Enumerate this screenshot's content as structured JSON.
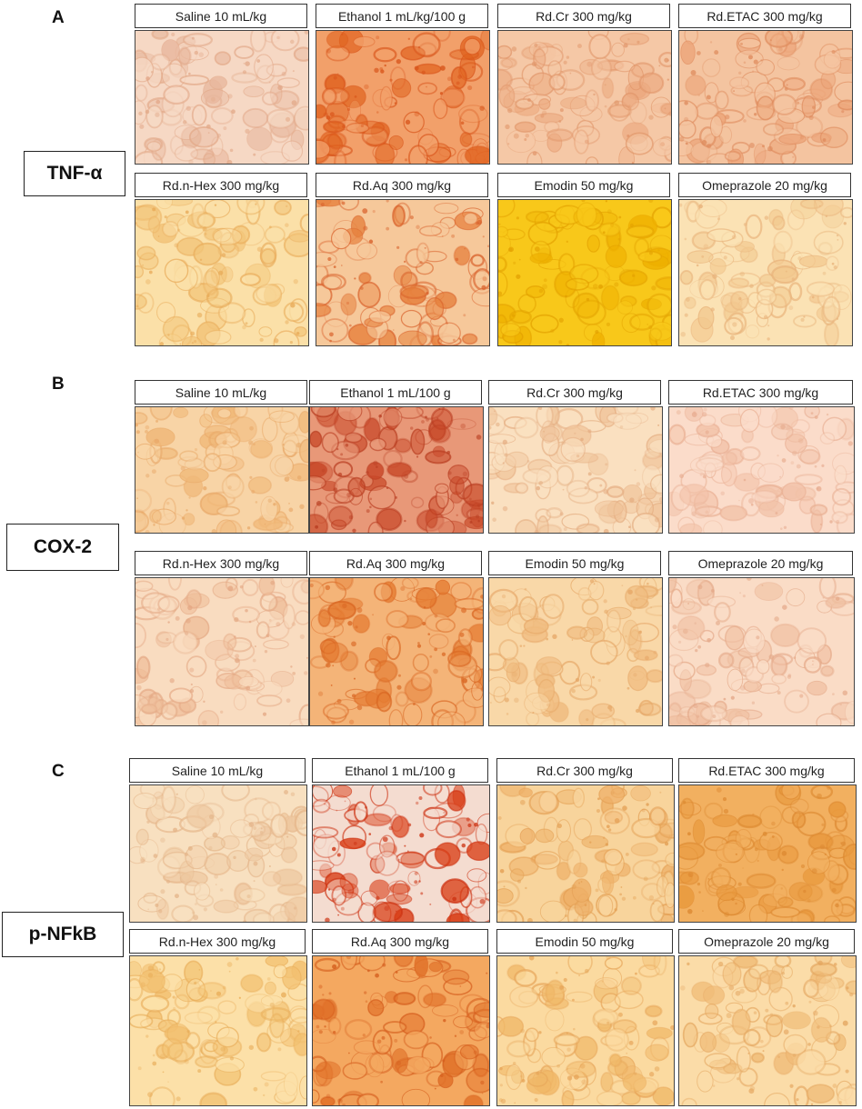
{
  "panels": [
    {
      "letter": "A",
      "marker": "TNF-α",
      "rows": [
        [
          {
            "label": "Saline 10 mL/kg",
            "base": "#f6d8c4",
            "spot": "#e8b89e",
            "stroke": "#e2a888"
          },
          {
            "label": "Ethanol 1 mL/kg/100 g",
            "base": "#f2a06a",
            "spot": "#e0621e",
            "stroke": "#d8541a"
          },
          {
            "label": "Rd.Cr 300 mg/kg",
            "base": "#f5c8a6",
            "spot": "#ecaa80",
            "stroke": "#e09468"
          },
          {
            "label": "Rd.ETAC 300 mg/kg",
            "base": "#f4c4a0",
            "spot": "#eca478",
            "stroke": "#de8a5c"
          }
        ],
        [
          {
            "label": "Rd.n-Hex 300 mg/kg",
            "base": "#fbe0a8",
            "spot": "#f2c478",
            "stroke": "#e8aa58"
          },
          {
            "label": "Rd.Aq 300 mg/kg",
            "base": "#f6c89a",
            "spot": "#e6803c",
            "stroke": "#d8602a"
          },
          {
            "label": "Emodin 50 mg/kg",
            "base": "#f8c81a",
            "spot": "#eeb000",
            "stroke": "#e2a000"
          },
          {
            "label": "Omeprazole 20 mg/kg",
            "base": "#fbe2b4",
            "spot": "#f2c88e",
            "stroke": "#e8b27a"
          }
        ]
      ]
    },
    {
      "letter": "B",
      "marker": "COX-2",
      "rows": [
        [
          {
            "label": "Saline 10 mL/kg",
            "base": "#f8d4a6",
            "spot": "#f0b878",
            "stroke": "#e8a868"
          },
          {
            "label": "Ethanol 1 mL/100 g",
            "base": "#e89878",
            "spot": "#c84828",
            "stroke": "#b83c20"
          },
          {
            "label": "Rd.Cr 300 mg/kg",
            "base": "#fae0c0",
            "spot": "#f0c49a",
            "stroke": "#e4ac80"
          },
          {
            "label": "Rd.ETAC 300 mg/kg",
            "base": "#fbdcca",
            "spot": "#f2c2a8",
            "stroke": "#e8ae92"
          }
        ],
        [
          {
            "label": "Rd.n-Hex 300 mg/kg",
            "base": "#f9dcc0",
            "spot": "#efbe9a",
            "stroke": "#e4a884"
          },
          {
            "label": "Rd.Aq 300 mg/kg",
            "base": "#f4b478",
            "spot": "#e47a30",
            "stroke": "#d86420"
          },
          {
            "label": "Emodin 50 mg/kg",
            "base": "#f9d8a8",
            "spot": "#f0bc80",
            "stroke": "#e6a868"
          },
          {
            "label": "Omeprazole 20 mg/kg",
            "base": "#fadcc6",
            "spot": "#f0c0a2",
            "stroke": "#e4a888"
          }
        ]
      ]
    },
    {
      "letter": "C",
      "marker": "p-NFkB",
      "rows": [
        [
          {
            "label": "Saline 10 mL/kg",
            "base": "#f8e0c0",
            "spot": "#eec8a0",
            "stroke": "#e4b488"
          },
          {
            "label": "Ethanol 1 mL/100 g",
            "base": "#f4dcd0",
            "spot": "#d83c14",
            "stroke": "#cc3010"
          },
          {
            "label": "Rd.Cr 300 mg/kg",
            "base": "#f8d49c",
            "spot": "#eeb068",
            "stroke": "#e29c50"
          },
          {
            "label": "Rd.ETAC 300 mg/kg",
            "base": "#f2b060",
            "spot": "#e8983c",
            "stroke": "#dc8830"
          }
        ],
        [
          {
            "label": "Rd.n-Hex 300 mg/kg",
            "base": "#fce0a8",
            "spot": "#f2c070",
            "stroke": "#e8ac58"
          },
          {
            "label": "Rd.Aq 300 mg/kg",
            "base": "#f4a860",
            "spot": "#e07028",
            "stroke": "#d45c1c"
          },
          {
            "label": "Emodin 50 mg/kg",
            "base": "#fbdaa0",
            "spot": "#f0b868",
            "stroke": "#e6a458"
          },
          {
            "label": "Omeprazole 20 mg/kg",
            "base": "#fbdca8",
            "spot": "#f0bc78",
            "stroke": "#e4a660"
          }
        ]
      ]
    }
  ]
}
